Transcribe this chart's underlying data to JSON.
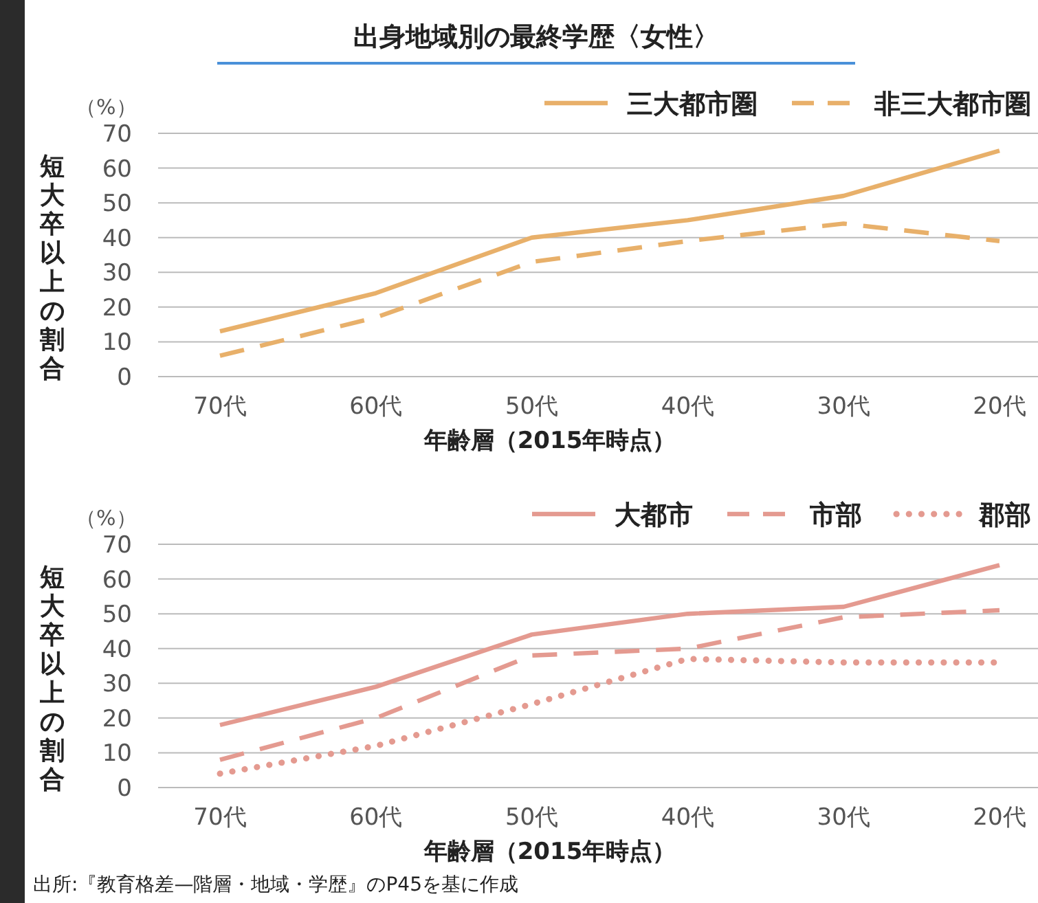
{
  "chart_data": [
    {
      "type": "line",
      "title": "出身地域別の最終学歴〈女性〉",
      "xlabel": "年齢層（2015年時点）",
      "ylabel": "短大卒以上の割合",
      "annotations": [
        "（%）"
      ],
      "categories": [
        "70代",
        "60代",
        "50代",
        "40代",
        "30代",
        "20代"
      ],
      "series": [
        {
          "name": "三大都市圏",
          "color": "#e8b06a",
          "line_style": "solid",
          "values": [
            13,
            24,
            40,
            45,
            52,
            65
          ]
        },
        {
          "name": "非三大都市圏",
          "color": "#e8b06a",
          "line_style": "dashed",
          "values": [
            6,
            17,
            33,
            39,
            44,
            39
          ]
        }
      ],
      "ylim": [
        0,
        70
      ],
      "yticks": [
        0,
        10,
        20,
        30,
        40,
        50,
        60,
        70
      ],
      "grid": "y",
      "legend": "top right",
      "marker": "none"
    },
    {
      "type": "line",
      "xlabel": "年齢層（2015年時点）",
      "ylabel": "短大卒以上の割合",
      "annotations": [
        "（%）",
        "出所:『教育格差—階層・地域・学歴』のP45を基に作成"
      ],
      "categories": [
        "70代",
        "60代",
        "50代",
        "40代",
        "30代",
        "20代"
      ],
      "series": [
        {
          "name": "大都市",
          "color": "#e49a90",
          "line_style": "solid",
          "values": [
            18,
            29,
            44,
            50,
            52,
            64
          ]
        },
        {
          "name": "市部",
          "color": "#e49a90",
          "line_style": "dashed",
          "values": [
            8,
            20,
            38,
            40,
            49,
            51
          ]
        },
        {
          "name": "郡部",
          "color": "#e49a90",
          "line_style": "dotted",
          "values": [
            4,
            12,
            24,
            37,
            36,
            36
          ]
        }
      ],
      "ylim": [
        0,
        70
      ],
      "yticks": [
        0,
        10,
        20,
        30,
        40,
        50,
        60,
        70
      ],
      "grid": "y",
      "legend": "top right",
      "marker": "none"
    }
  ]
}
